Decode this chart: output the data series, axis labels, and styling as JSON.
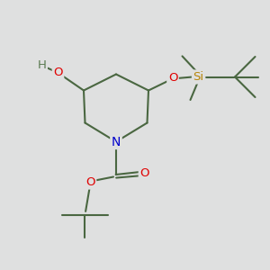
{
  "bg_color": "#dfe0e0",
  "bond_color": "#4a6741",
  "bond_width": 1.5,
  "atom_colors": {
    "O": "#e00000",
    "N": "#0000cc",
    "Si": "#b8860b",
    "H": "#5a7a51",
    "C": "#4a6741"
  },
  "font_size": 9.5
}
